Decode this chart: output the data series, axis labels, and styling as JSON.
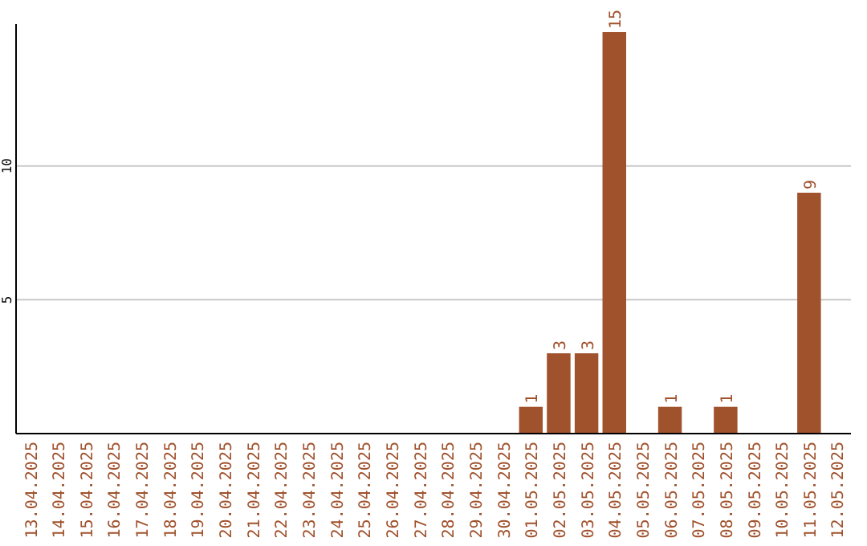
{
  "chart_data": {
    "type": "bar",
    "categories": [
      "13.04.2025",
      "14.04.2025",
      "15.04.2025",
      "16.04.2025",
      "17.04.2025",
      "18.04.2025",
      "19.04.2025",
      "20.04.2025",
      "21.04.2025",
      "22.04.2025",
      "23.04.2025",
      "24.04.2025",
      "25.04.2025",
      "26.04.2025",
      "27.04.2025",
      "28.04.2025",
      "29.04.2025",
      "30.04.2025",
      "01.05.2025",
      "02.05.2025",
      "03.05.2025",
      "04.05.2025",
      "05.05.2025",
      "06.05.2025",
      "07.05.2025",
      "08.05.2025",
      "09.05.2025",
      "10.05.2025",
      "11.05.2025",
      "12.05.2025"
    ],
    "values": [
      0,
      0,
      0,
      0,
      0,
      0,
      0,
      0,
      0,
      0,
      0,
      0,
      0,
      0,
      0,
      0,
      0,
      0,
      1,
      3,
      3,
      15,
      0,
      1,
      0,
      1,
      0,
      0,
      9,
      0
    ],
    "value_labels": [
      null,
      null,
      null,
      null,
      null,
      null,
      null,
      null,
      null,
      null,
      null,
      null,
      null,
      null,
      null,
      null,
      null,
      null,
      "1",
      "3",
      "3",
      "15",
      null,
      "1",
      null,
      "1",
      null,
      null,
      "9",
      null
    ],
    "color": "#a0522d",
    "ylim": [
      0,
      15.3
    ],
    "yticks": [
      5,
      10
    ],
    "grid": "y"
  }
}
